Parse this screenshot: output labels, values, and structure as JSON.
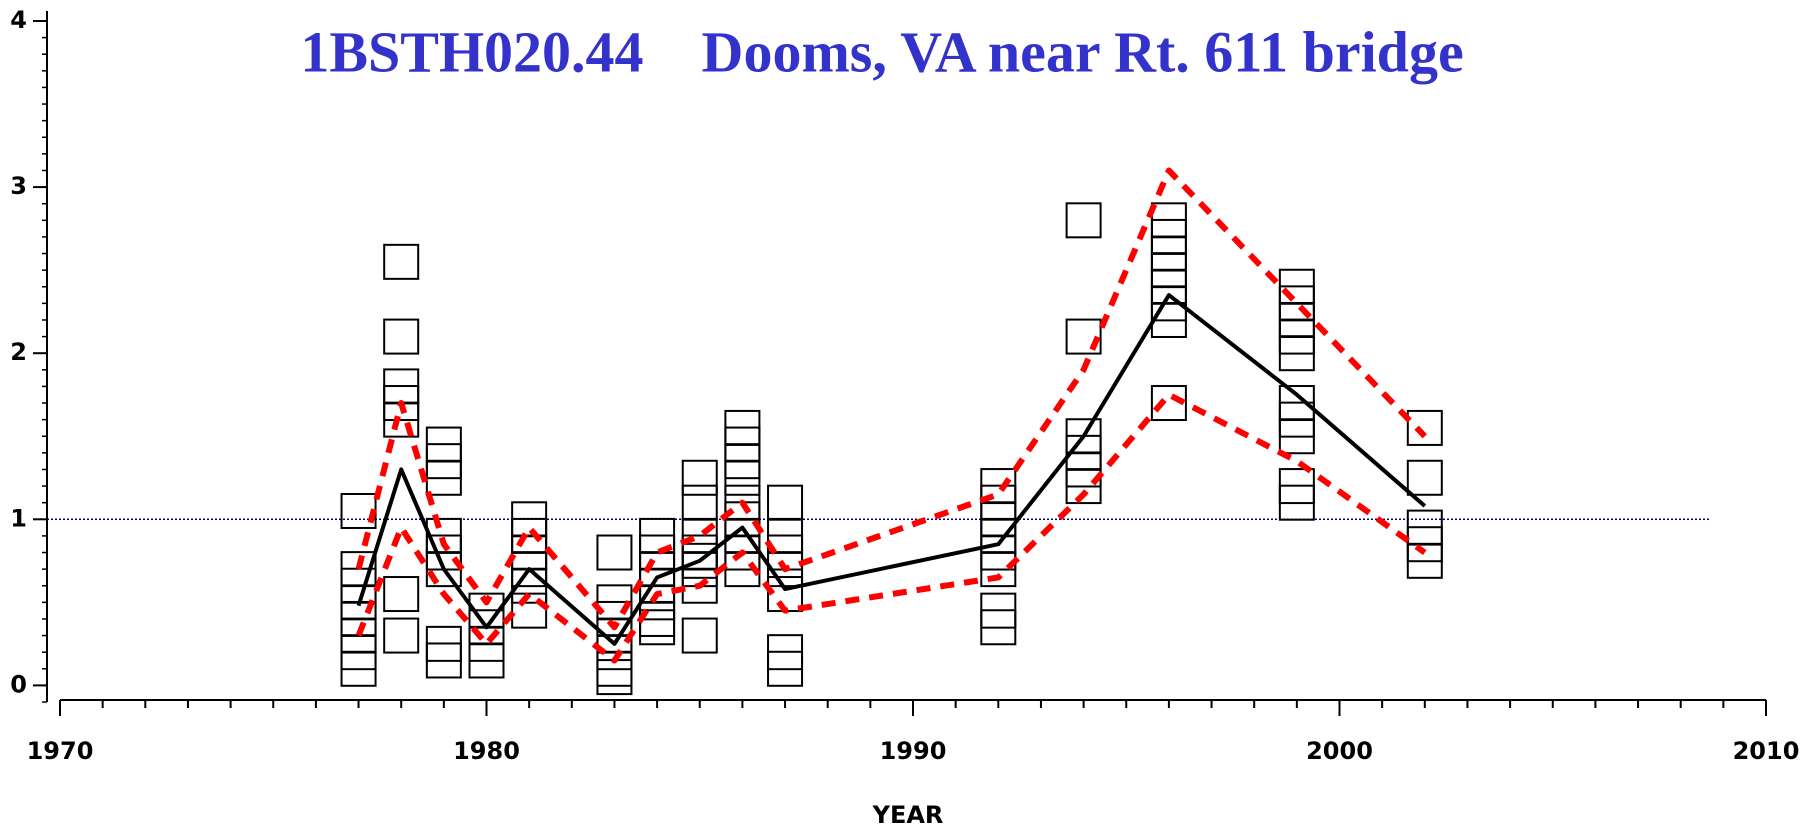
{
  "chart_data": {
    "type": "scatter",
    "title": "1BSTH020.44    Dooms, VA near Rt. 611 bridge",
    "x_label": "YEAR",
    "xlim": [
      1970,
      2010
    ],
    "xticks": [
      1970,
      1980,
      1990,
      2000,
      2010
    ],
    "ylim": [
      -0.1,
      4
    ],
    "yticks": [
      0,
      1,
      2,
      3,
      4
    ],
    "reference_line": 1,
    "reference_color": "#000080",
    "marker_color": "#000000",
    "points": {
      "x": [
        1977,
        1977,
        1977,
        1977,
        1977,
        1977,
        1977,
        1977,
        1978,
        1978,
        1978,
        1978,
        1978,
        1978,
        1978,
        1979,
        1979,
        1979,
        1979,
        1979,
        1979,
        1979,
        1979,
        1980,
        1980,
        1980,
        1980,
        1981,
        1981,
        1981,
        1981,
        1981,
        1981,
        1983,
        1983,
        1983,
        1983,
        1983,
        1983,
        1983,
        1984,
        1984,
        1984,
        1984,
        1984,
        1984,
        1984,
        1985,
        1985,
        1985,
        1985,
        1985,
        1985,
        1985,
        1985,
        1986,
        1986,
        1986,
        1986,
        1986,
        1986,
        1986,
        1986,
        1986,
        1987,
        1987,
        1987,
        1987,
        1987,
        1987,
        1987,
        1992,
        1992,
        1992,
        1992,
        1992,
        1992,
        1992,
        1992,
        1994,
        1994,
        1994,
        1994,
        1994,
        1994,
        1996,
        1996,
        1996,
        1996,
        1996,
        1996,
        1996,
        1996,
        1999,
        1999,
        1999,
        1999,
        1999,
        1999,
        1999,
        1999,
        1999,
        1999,
        2002,
        2002,
        2002,
        2002,
        2002
      ],
      "y": [
        1.05,
        0.7,
        0.6,
        0.5,
        0.4,
        0.3,
        0.2,
        0.1,
        2.55,
        2.1,
        1.8,
        1.7,
        1.6,
        0.55,
        0.3,
        1.45,
        1.35,
        1.25,
        0.9,
        0.8,
        0.7,
        0.25,
        0.15,
        0.45,
        0.35,
        0.25,
        0.15,
        1.0,
        0.9,
        0.8,
        0.7,
        0.6,
        0.45,
        0.8,
        0.5,
        0.4,
        0.3,
        0.2,
        0.1,
        0.05,
        0.9,
        0.8,
        0.7,
        0.6,
        0.5,
        0.4,
        0.35,
        1.25,
        1.1,
        0.9,
        0.8,
        0.75,
        0.7,
        0.6,
        0.3,
        1.55,
        1.45,
        1.35,
        1.25,
        1.1,
        1.0,
        0.9,
        0.8,
        0.7,
        1.1,
        0.9,
        0.8,
        0.7,
        0.55,
        0.2,
        0.1,
        1.2,
        1.1,
        1.0,
        0.9,
        0.8,
        0.7,
        0.45,
        0.35,
        2.8,
        2.1,
        1.5,
        1.4,
        1.3,
        1.2,
        2.8,
        2.7,
        2.6,
        2.5,
        2.4,
        2.3,
        2.2,
        1.7,
        2.4,
        2.3,
        2.2,
        2.1,
        2.0,
        1.7,
        1.6,
        1.5,
        1.2,
        1.1,
        1.55,
        1.25,
        0.95,
        0.85,
        0.75
      ]
    },
    "lines": [
      {
        "color": "#000000",
        "dashed": false,
        "x": [
          1977,
          1978,
          1979,
          1980,
          1981,
          1983,
          1984,
          1985,
          1986,
          1987,
          1992,
          1994,
          1996,
          1999,
          2002
        ],
        "y": [
          0.48,
          1.3,
          0.7,
          0.35,
          0.7,
          0.25,
          0.65,
          0.75,
          0.95,
          0.58,
          0.85,
          1.5,
          2.35,
          1.75,
          1.08
        ]
      },
      {
        "color": "#ff0000",
        "dashed": true,
        "x": [
          1977,
          1978,
          1979,
          1980,
          1981,
          1983,
          1984,
          1985,
          1986,
          1987,
          1992,
          1994,
          1996,
          1999,
          2002
        ],
        "y": [
          0.7,
          1.7,
          0.85,
          0.5,
          0.95,
          0.35,
          0.8,
          0.9,
          1.1,
          0.7,
          1.15,
          1.9,
          3.1,
          2.3,
          1.5
        ]
      },
      {
        "color": "#ff0000",
        "dashed": true,
        "x": [
          1977,
          1978,
          1979,
          1980,
          1981,
          1983,
          1984,
          1985,
          1986,
          1987,
          1992,
          1994,
          1996,
          1999,
          2002
        ],
        "y": [
          0.3,
          0.95,
          0.55,
          0.25,
          0.55,
          0.15,
          0.55,
          0.6,
          0.8,
          0.45,
          0.65,
          1.15,
          1.75,
          1.35,
          0.8
        ]
      }
    ]
  }
}
